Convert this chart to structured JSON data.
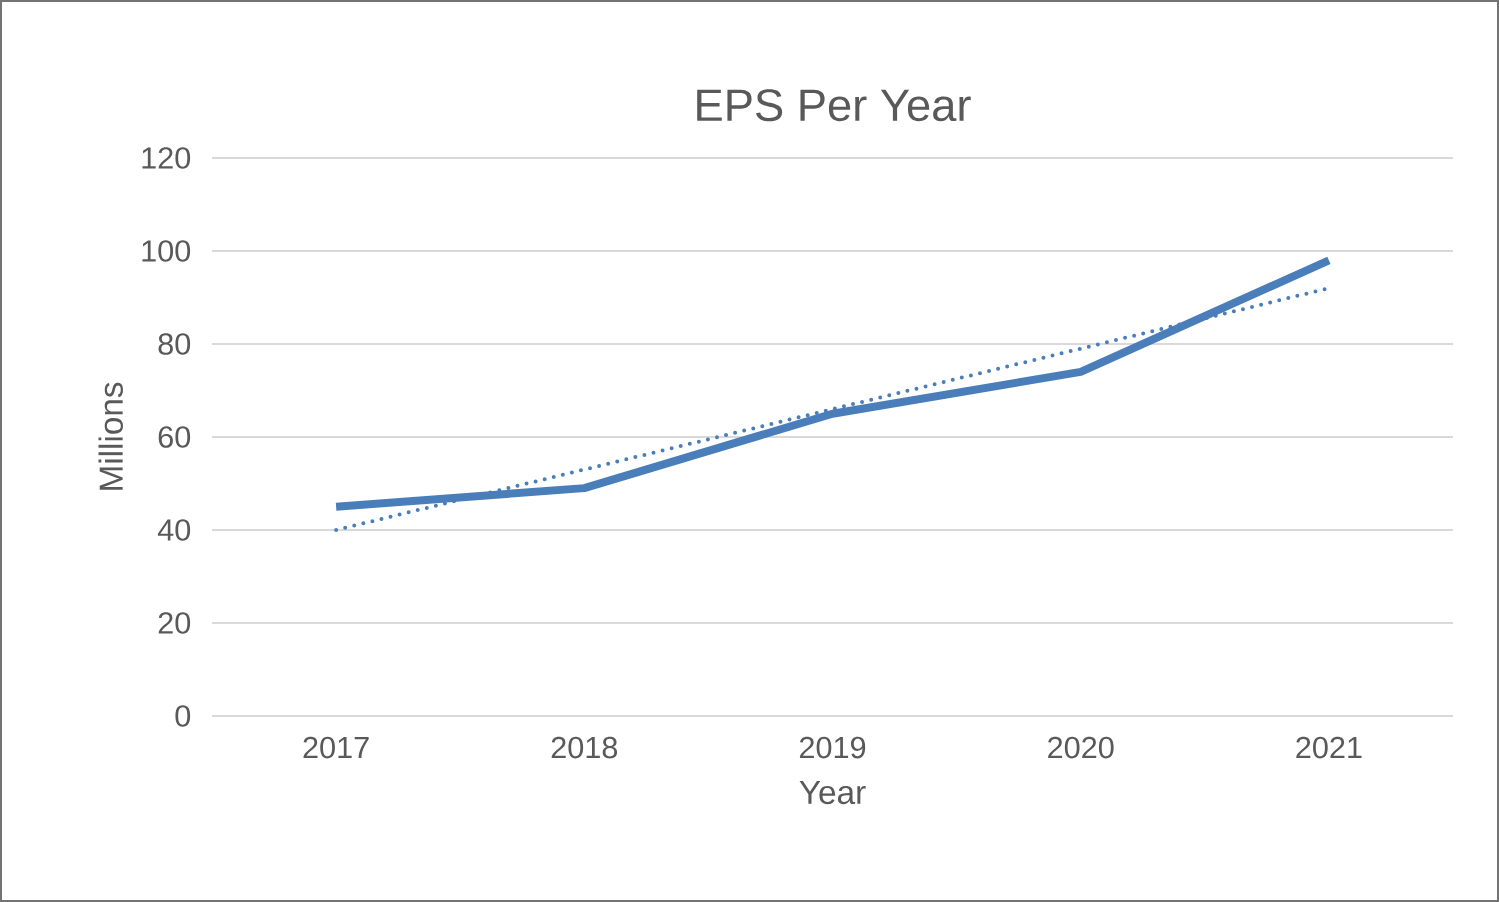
{
  "chart_data": {
    "type": "line",
    "title": "EPS Per Year",
    "xlabel": "Year",
    "ylabel": "Millions",
    "categories": [
      "2017",
      "2018",
      "2019",
      "2020",
      "2021"
    ],
    "series": [
      {
        "color": "#4a7ebb",
        "values": [
          45,
          49,
          65,
          74,
          98
        ],
        "line_style": "solid"
      },
      {
        "type": "line",
        "color": "#4a7ebb",
        "values": [
          40,
          53,
          66,
          79,
          92
        ],
        "line_style": "dotted"
      }
    ],
    "ylim": [
      0,
      120
    ],
    "yticks": [
      0,
      20,
      40,
      60,
      80,
      100,
      120
    ],
    "grid": "y",
    "marker": "none"
  }
}
